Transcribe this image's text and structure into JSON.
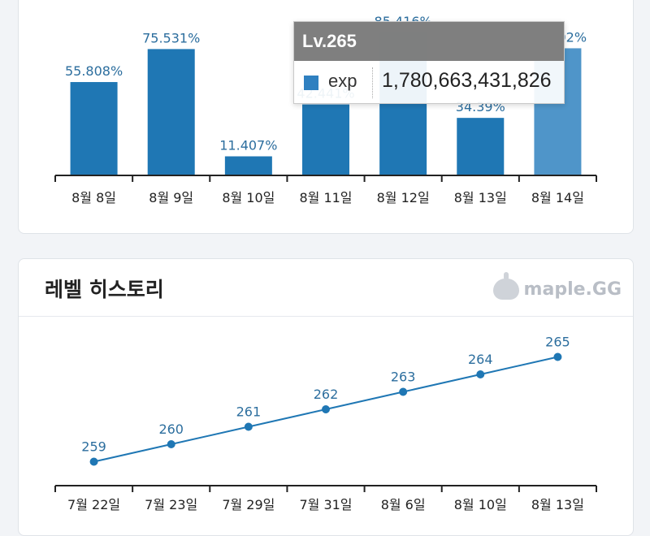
{
  "exp_chart": {
    "title": "",
    "tooltip": {
      "title": "Lv.265",
      "series_name": "exp",
      "value": "1,780,663,431,826"
    }
  },
  "level_chart": {
    "title": "레벨 히스토리",
    "logo_text": "maple.GG"
  },
  "chart_data": [
    {
      "type": "bar",
      "categories": [
        "8월 8일",
        "8월 9일",
        "8월 10일",
        "8월 11일",
        "8월 12일",
        "8월 13일",
        "8월 14일"
      ],
      "values": [
        55.808,
        75.531,
        11.407,
        42.441,
        85.416,
        34.39,
        76.002
      ],
      "labels": [
        "55.808%",
        "75.531%",
        "11.407%",
        "42.441%",
        "85.416%",
        "34.39%",
        "76.002%"
      ],
      "highlighted_index": 6,
      "ylim": [
        0,
        100
      ],
      "grid": false,
      "color": "#1f77b4",
      "highlight_color": "#4f95c9"
    },
    {
      "type": "line",
      "categories": [
        "7월 22일",
        "7월 23일",
        "7월 29일",
        "7월 31일",
        "8월 6일",
        "8월 10일",
        "8월 13일"
      ],
      "values": [
        259,
        260,
        261,
        262,
        263,
        264,
        265
      ],
      "labels": [
        "259",
        "260",
        "261",
        "262",
        "263",
        "264",
        "265"
      ],
      "ylim": [
        258,
        266
      ],
      "grid": false,
      "color": "#1f77b4"
    }
  ]
}
